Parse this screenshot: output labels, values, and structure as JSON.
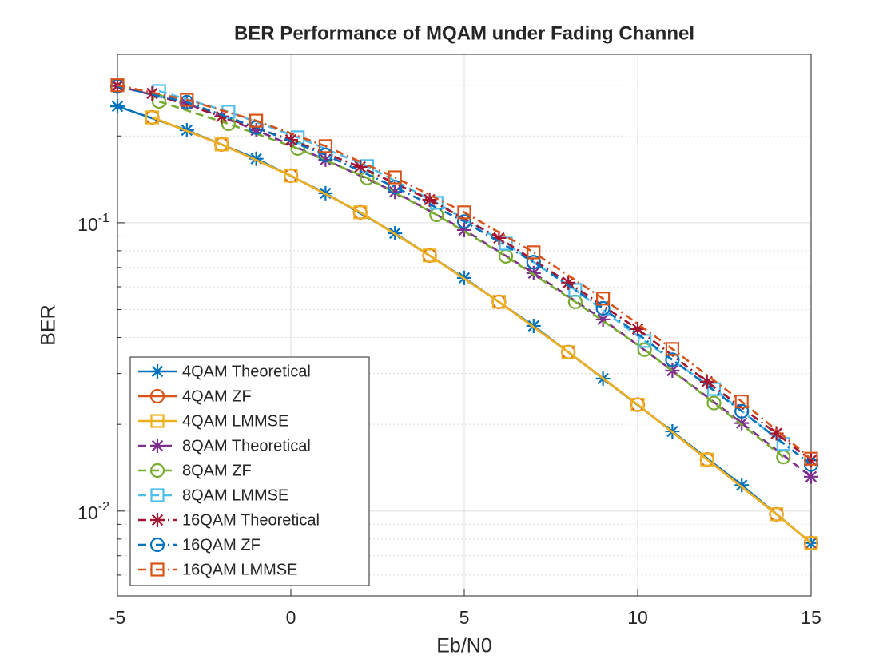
{
  "chart_data": {
    "type": "line",
    "title": "BER Performance of MQAM under Fading Channel",
    "xlabel": "Eb/N0",
    "ylabel": "BER",
    "xlim": [
      -5,
      15
    ],
    "xticks": [
      -5,
      0,
      5,
      10,
      15
    ],
    "ylim": [
      0.00508,
      0.384
    ],
    "yscale": "log",
    "yticks": [
      {
        "value": 0.01,
        "label": "10-2"
      },
      {
        "value": 0.1,
        "label": "10-1"
      }
    ],
    "yminorticks": [
      0.006,
      0.007,
      0.008,
      0.009,
      0.02,
      0.03,
      0.04,
      0.05,
      0.06,
      0.07,
      0.08,
      0.09,
      0.2,
      0.3
    ],
    "grid": true,
    "legend_position": "lower left",
    "series": [
      {
        "name": "4QAM Theoretical",
        "color": "#0072BD",
        "marker": "star",
        "linestyle": "solid",
        "x": [
          -5,
          -3,
          -1,
          1,
          3,
          5,
          7,
          9,
          11,
          13,
          15
        ],
        "values": [
          0.2535,
          0.2095,
          0.1668,
          0.1266,
          0.092,
          0.0644,
          0.0439,
          0.0288,
          0.0189,
          0.0123,
          0.00775
        ]
      },
      {
        "name": "4QAM ZF",
        "color": "#D95319",
        "marker": "circle",
        "linestyle": "solid",
        "x": [
          -4,
          -2,
          0,
          2,
          4,
          6,
          8,
          10,
          12,
          14,
          15
        ],
        "values": [
          0.232,
          0.187,
          0.1457,
          0.1087,
          0.077,
          0.0532,
          0.0356,
          0.0234,
          0.0151,
          0.00975,
          0.00775
        ]
      },
      {
        "name": "4QAM LMMSE",
        "color": "#EDB120",
        "marker": "square",
        "linestyle": "solid",
        "x": [
          -4,
          -2,
          0,
          2,
          4,
          6,
          8,
          10,
          12,
          14,
          15
        ],
        "values": [
          0.232,
          0.187,
          0.1457,
          0.1087,
          0.077,
          0.0532,
          0.0356,
          0.0234,
          0.0151,
          0.00975,
          0.00775
        ]
      },
      {
        "name": "8QAM Theoretical",
        "color": "#7E2F8E",
        "marker": "star",
        "linestyle": "dashed",
        "x": [
          -5,
          -3,
          -1,
          1,
          3,
          5,
          7,
          9,
          11,
          13,
          15
        ],
        "values": [
          0.298,
          0.259,
          0.2095,
          0.1655,
          0.128,
          0.0944,
          0.0669,
          0.0462,
          0.0307,
          0.0202,
          0.01316
        ]
      },
      {
        "name": "8QAM ZF",
        "color": "#77AC30",
        "marker": "circle",
        "linestyle": "dashed",
        "x": [
          -3.8,
          -1.8,
          0.2,
          2.2,
          4.2,
          6.2,
          8.2,
          10.2,
          12.2,
          14.2
        ],
        "values": [
          0.2636,
          0.2205,
          0.181,
          0.143,
          0.1066,
          0.0765,
          0.0532,
          0.0363,
          0.0237,
          0.0154
        ]
      },
      {
        "name": "8QAM LMMSE",
        "color": "#4DBEEE",
        "marker": "square",
        "linestyle": "dashed",
        "x": [
          -3.8,
          -1.8,
          0.2,
          2.2,
          4.2,
          6.2,
          8.2,
          10.2,
          12.2,
          14.2
        ],
        "values": [
          0.2864,
          0.2427,
          0.1979,
          0.1573,
          0.1173,
          0.0847,
          0.0585,
          0.0389,
          0.0265,
          0.0171
        ]
      },
      {
        "name": "16QAM Theoretical",
        "color": "#A2142F",
        "marker": "star",
        "linestyle": "dashdot",
        "x": [
          -5,
          -4,
          -2,
          0,
          2,
          4,
          6,
          8,
          10,
          12,
          14,
          15
        ],
        "values": [
          0.299,
          0.281,
          0.2336,
          0.194,
          0.1563,
          0.1203,
          0.0886,
          0.062,
          0.0428,
          0.0281,
          0.0186,
          0.015
        ]
      },
      {
        "name": "16QAM ZF",
        "color": "#0072BD",
        "marker": "circle",
        "linestyle": "dashdot",
        "x": [
          -5,
          -3,
          -1,
          1,
          3,
          5,
          7,
          9,
          11,
          13,
          15
        ],
        "values": [
          0.297,
          0.262,
          0.214,
          0.172,
          0.133,
          0.101,
          0.073,
          0.0505,
          0.0335,
          0.0222,
          0.0145
        ]
      },
      {
        "name": "16QAM LMMSE",
        "color": "#D95319",
        "marker": "square",
        "linestyle": "dashdot",
        "x": [
          -5,
          -3,
          -1,
          1,
          3,
          5,
          7,
          9,
          11,
          13,
          15
        ],
        "values": [
          0.3,
          0.267,
          0.226,
          0.1845,
          0.1438,
          0.1087,
          0.079,
          0.0546,
          0.0365,
          0.024,
          0.0152
        ]
      }
    ]
  }
}
